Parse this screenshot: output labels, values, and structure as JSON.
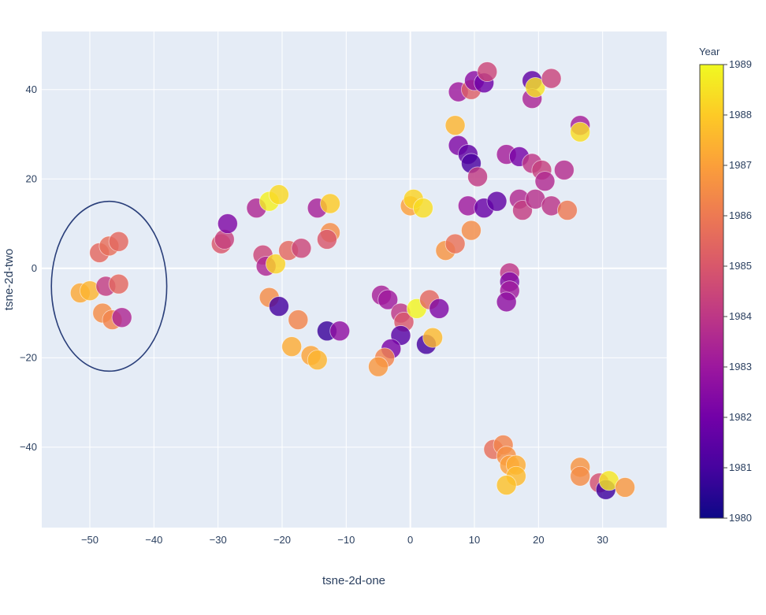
{
  "chart_data": {
    "type": "scatter",
    "xlabel": "tsne-2d-one",
    "ylabel": "tsne-2d-two",
    "xlim": [
      -57.5,
      40
    ],
    "ylim": [
      -58,
      53
    ],
    "x_ticks": [
      -50,
      -40,
      -30,
      -20,
      -10,
      0,
      10,
      20,
      30
    ],
    "y_ticks": [
      -40,
      -20,
      0,
      20,
      40
    ],
    "grid": true,
    "colorbar": {
      "title": "Year",
      "min": 1980,
      "max": 1989,
      "ticks": [
        1980,
        1981,
        1982,
        1983,
        1984,
        1985,
        1986,
        1987,
        1988,
        1989
      ],
      "colorscale": [
        "#0d0887",
        "#46039f",
        "#7201a8",
        "#9c179e",
        "#bd3786",
        "#d8576b",
        "#ed7953",
        "#fb9f3a",
        "#fdca26",
        "#f0f921"
      ]
    },
    "annotation_circle": {
      "cx": -47,
      "cy": -4,
      "rx": 9,
      "ry": 19
    },
    "points": [
      {
        "x": -51.5,
        "y": -5.5,
        "year": 1987.2
      },
      {
        "x": -50,
        "y": -5,
        "year": 1987.5
      },
      {
        "x": -48,
        "y": -10,
        "year": 1986.5
      },
      {
        "x": -46.5,
        "y": -11.5,
        "year": 1986.3
      },
      {
        "x": -45,
        "y": -11,
        "year": 1983.5
      },
      {
        "x": -47.5,
        "y": -4,
        "year": 1984.2
      },
      {
        "x": -45.5,
        "y": -3.5,
        "year": 1985.5
      },
      {
        "x": -48.5,
        "y": 3.5,
        "year": 1985.5
      },
      {
        "x": -47,
        "y": 5,
        "year": 1985.7
      },
      {
        "x": -45.5,
        "y": 6,
        "year": 1985.5
      },
      {
        "x": -29.5,
        "y": 5.5,
        "year": 1985
      },
      {
        "x": -29,
        "y": 6.5,
        "year": 1984.3
      },
      {
        "x": -28.5,
        "y": 10,
        "year": 1982.3
      },
      {
        "x": -24,
        "y": 13.5,
        "year": 1983.5
      },
      {
        "x": -22,
        "y": 15,
        "year": 1988.8
      },
      {
        "x": -20.5,
        "y": 16.5,
        "year": 1988.3
      },
      {
        "x": -23,
        "y": 3,
        "year": 1984.5
      },
      {
        "x": -22.5,
        "y": 0.5,
        "year": 1983.5
      },
      {
        "x": -21,
        "y": 1,
        "year": 1988.2
      },
      {
        "x": -19,
        "y": 4,
        "year": 1985.5
      },
      {
        "x": -17,
        "y": 4.5,
        "year": 1984.5
      },
      {
        "x": -22,
        "y": -6.5,
        "year": 1986.5
      },
      {
        "x": -20.5,
        "y": -8.5,
        "year": 1981
      },
      {
        "x": -17.5,
        "y": -11.5,
        "year": 1986.3
      },
      {
        "x": -18.5,
        "y": -17.5,
        "year": 1987.3
      },
      {
        "x": -15.5,
        "y": -19.5,
        "year": 1987.1
      },
      {
        "x": -14.5,
        "y": -20.5,
        "year": 1987.5
      },
      {
        "x": -13,
        "y": -14,
        "year": 1980.8
      },
      {
        "x": -11,
        "y": -14,
        "year": 1982.7
      },
      {
        "x": -14.5,
        "y": 13.5,
        "year": 1983.3
      },
      {
        "x": -12.5,
        "y": 14.5,
        "year": 1988
      },
      {
        "x": -12.5,
        "y": 8,
        "year": 1986.5
      },
      {
        "x": -13,
        "y": 6.5,
        "year": 1985
      },
      {
        "x": -4.5,
        "y": -6,
        "year": 1983.3
      },
      {
        "x": -3.5,
        "y": -7,
        "year": 1983.1
      },
      {
        "x": -1.5,
        "y": -10,
        "year": 1984
      },
      {
        "x": -1,
        "y": -12,
        "year": 1985
      },
      {
        "x": -1.5,
        "y": -15,
        "year": 1981.4
      },
      {
        "x": -3,
        "y": -18,
        "year": 1982.2
      },
      {
        "x": -4,
        "y": -20,
        "year": 1986.3
      },
      {
        "x": -5,
        "y": -22,
        "year": 1986.8
      },
      {
        "x": 1,
        "y": -9,
        "year": 1988.9
      },
      {
        "x": 3,
        "y": -7,
        "year": 1985.5
      },
      {
        "x": 4.5,
        "y": -9,
        "year": 1982.3
      },
      {
        "x": 2.5,
        "y": -17,
        "year": 1981
      },
      {
        "x": 3.5,
        "y": -15.5,
        "year": 1987.6
      },
      {
        "x": 0,
        "y": 14,
        "year": 1987
      },
      {
        "x": 0.5,
        "y": 15.5,
        "year": 1988.2
      },
      {
        "x": 2,
        "y": 13.5,
        "year": 1988.4
      },
      {
        "x": 5.5,
        "y": 4,
        "year": 1986.7
      },
      {
        "x": 7,
        "y": 5.5,
        "year": 1985.8
      },
      {
        "x": 9.5,
        "y": 8.5,
        "year": 1986.5
      },
      {
        "x": 7,
        "y": 32,
        "year": 1987.5
      },
      {
        "x": 7.5,
        "y": 27.5,
        "year": 1982.3
      },
      {
        "x": 9,
        "y": 25.5,
        "year": 1981.6
      },
      {
        "x": 9.5,
        "y": 23.5,
        "year": 1981.1
      },
      {
        "x": 10.5,
        "y": 20.5,
        "year": 1984.1
      },
      {
        "x": 9,
        "y": 14,
        "year": 1983.1
      },
      {
        "x": 11.5,
        "y": 13.5,
        "year": 1981.8
      },
      {
        "x": 13.5,
        "y": 15,
        "year": 1981.6
      },
      {
        "x": 7.5,
        "y": 39.5,
        "year": 1983.1
      },
      {
        "x": 9.5,
        "y": 40,
        "year": 1985.2
      },
      {
        "x": 10,
        "y": 42,
        "year": 1982.6
      },
      {
        "x": 11.5,
        "y": 41.5,
        "year": 1981.9
      },
      {
        "x": 12,
        "y": 44,
        "year": 1984.5
      },
      {
        "x": 15,
        "y": 25.5,
        "year": 1983.2
      },
      {
        "x": 17,
        "y": 25,
        "year": 1982.1
      },
      {
        "x": 19,
        "y": 23.5,
        "year": 1984
      },
      {
        "x": 20.5,
        "y": 22,
        "year": 1984.3
      },
      {
        "x": 21,
        "y": 19.5,
        "year": 1983.6
      },
      {
        "x": 24,
        "y": 22,
        "year": 1983.7
      },
      {
        "x": 17,
        "y": 15.5,
        "year": 1983.6
      },
      {
        "x": 17.5,
        "y": 13,
        "year": 1984.2
      },
      {
        "x": 19.5,
        "y": 15.5,
        "year": 1983.8
      },
      {
        "x": 22,
        "y": 14,
        "year": 1983.9
      },
      {
        "x": 24.5,
        "y": 13,
        "year": 1986
      },
      {
        "x": 19,
        "y": 42,
        "year": 1981.6
      },
      {
        "x": 19,
        "y": 38,
        "year": 1983.4
      },
      {
        "x": 19.5,
        "y": 40.5,
        "year": 1988.5
      },
      {
        "x": 22,
        "y": 42.5,
        "year": 1984.4
      },
      {
        "x": 26.5,
        "y": 32,
        "year": 1983.2
      },
      {
        "x": 26.5,
        "y": 30.5,
        "year": 1988.4
      },
      {
        "x": 15.5,
        "y": -1,
        "year": 1984
      },
      {
        "x": 15.5,
        "y": -3,
        "year": 1982.4
      },
      {
        "x": 15.5,
        "y": -5,
        "year": 1983.1
      },
      {
        "x": 15,
        "y": -7.5,
        "year": 1982.7
      },
      {
        "x": 13,
        "y": -40.5,
        "year": 1985.7
      },
      {
        "x": 14.5,
        "y": -39.5,
        "year": 1986.3
      },
      {
        "x": 15,
        "y": -42,
        "year": 1986.6
      },
      {
        "x": 15.5,
        "y": -44,
        "year": 1987
      },
      {
        "x": 16.5,
        "y": -44,
        "year": 1987.3
      },
      {
        "x": 16.5,
        "y": -46.5,
        "year": 1987.6
      },
      {
        "x": 15,
        "y": -48.5,
        "year": 1987.8
      },
      {
        "x": 26.5,
        "y": -44.5,
        "year": 1986.7
      },
      {
        "x": 26.5,
        "y": -46.5,
        "year": 1986.5
      },
      {
        "x": 29.5,
        "y": -48,
        "year": 1984.8
      },
      {
        "x": 30.5,
        "y": -49.5,
        "year": 1980.9
      },
      {
        "x": 31,
        "y": -47.5,
        "year": 1988.6
      },
      {
        "x": 33.5,
        "y": -49,
        "year": 1986.8
      }
    ]
  }
}
